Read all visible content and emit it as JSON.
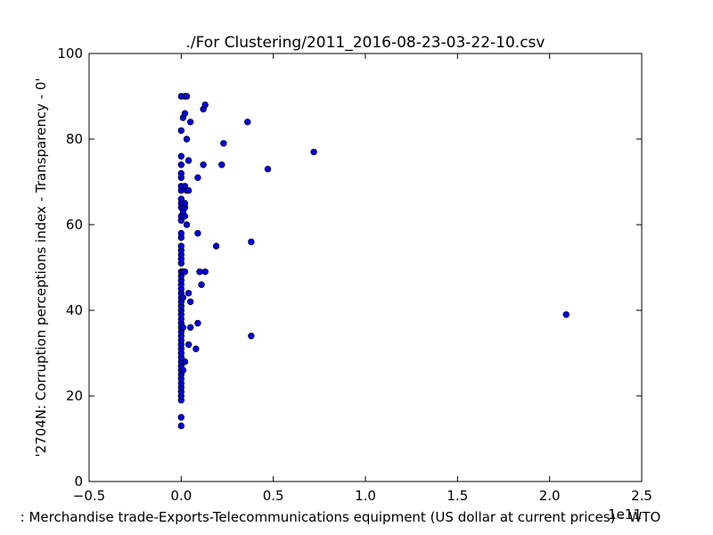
{
  "chart_data": {
    "type": "scatter",
    "title": "./For Clustering/2011_2016-08-23-03-22-10.csv",
    "xlabel": ": Merchandise trade-Exports-Telecommunications equipment (US dollar at current prices) - WTO",
    "ylabel": "'2704N: Corruption perceptions index - Transparency - 0'",
    "x_offset_label": "1e11",
    "xlim": [
      -0.5,
      2.5
    ],
    "ylim": [
      0,
      100
    ],
    "xticks": [
      -0.5,
      0.0,
      0.5,
      1.0,
      1.5,
      2.0,
      2.5
    ],
    "xtick_labels": [
      "−0.5",
      "0.0",
      "0.5",
      "1.0",
      "1.5",
      "2.0",
      "2.5"
    ],
    "yticks": [
      0,
      20,
      40,
      60,
      80,
      100
    ],
    "ytick_labels": [
      "0",
      "20",
      "40",
      "60",
      "80",
      "100"
    ],
    "grid": false,
    "marker_color": "#0000ff",
    "marker_edge": "#000000",
    "points": [
      [
        0.0,
        13
      ],
      [
        0.0,
        15
      ],
      [
        0.0,
        19
      ],
      [
        0.0,
        20
      ],
      [
        0.0,
        21
      ],
      [
        0.0,
        22
      ],
      [
        0.0,
        23
      ],
      [
        0.0,
        24
      ],
      [
        0.0,
        25
      ],
      [
        0.0,
        26
      ],
      [
        0.0,
        27
      ],
      [
        0.0,
        28
      ],
      [
        0.0,
        29
      ],
      [
        0.0,
        30
      ],
      [
        0.0,
        31
      ],
      [
        0.0,
        32
      ],
      [
        0.0,
        33
      ],
      [
        0.0,
        34
      ],
      [
        0.0,
        35
      ],
      [
        0.0,
        36
      ],
      [
        0.0,
        37
      ],
      [
        0.0,
        38
      ],
      [
        0.0,
        39
      ],
      [
        0.0,
        40
      ],
      [
        0.0,
        41
      ],
      [
        0.0,
        42
      ],
      [
        0.0,
        43
      ],
      [
        0.0,
        44
      ],
      [
        0.0,
        45
      ],
      [
        0.0,
        46
      ],
      [
        0.0,
        47
      ],
      [
        0.0,
        48
      ],
      [
        0.0,
        49
      ],
      [
        0.0,
        51
      ],
      [
        0.0,
        52
      ],
      [
        0.0,
        53
      ],
      [
        0.0,
        54
      ],
      [
        0.0,
        55
      ],
      [
        0.0,
        57
      ],
      [
        0.0,
        58
      ],
      [
        0.0,
        61
      ],
      [
        0.0,
        62
      ],
      [
        0.0,
        64
      ],
      [
        0.0,
        65
      ],
      [
        0.0,
        66
      ],
      [
        0.0,
        68
      ],
      [
        0.0,
        69
      ],
      [
        0.0,
        71
      ],
      [
        0.0,
        72
      ],
      [
        0.0,
        74
      ],
      [
        0.0,
        76
      ],
      [
        0.0,
        82
      ],
      [
        0.0,
        90
      ],
      [
        0.01,
        26
      ],
      [
        0.01,
        36
      ],
      [
        0.01,
        43
      ],
      [
        0.01,
        49
      ],
      [
        0.01,
        63
      ],
      [
        0.01,
        85
      ],
      [
        0.02,
        28
      ],
      [
        0.02,
        49
      ],
      [
        0.02,
        62
      ],
      [
        0.02,
        64
      ],
      [
        0.02,
        65
      ],
      [
        0.02,
        69
      ],
      [
        0.02,
        86
      ],
      [
        0.02,
        90
      ],
      [
        0.03,
        60
      ],
      [
        0.03,
        68
      ],
      [
        0.03,
        80
      ],
      [
        0.03,
        90
      ],
      [
        0.04,
        32
      ],
      [
        0.04,
        44
      ],
      [
        0.04,
        68
      ],
      [
        0.04,
        75
      ],
      [
        0.05,
        36
      ],
      [
        0.05,
        42
      ],
      [
        0.05,
        84
      ],
      [
        0.08,
        31
      ],
      [
        0.09,
        37
      ],
      [
        0.09,
        58
      ],
      [
        0.09,
        71
      ],
      [
        0.1,
        49
      ],
      [
        0.11,
        46
      ],
      [
        0.12,
        74
      ],
      [
        0.12,
        87
      ],
      [
        0.13,
        49
      ],
      [
        0.13,
        88
      ],
      [
        0.19,
        55
      ],
      [
        0.22,
        74
      ],
      [
        0.23,
        79
      ],
      [
        0.36,
        84
      ],
      [
        0.38,
        34
      ],
      [
        0.38,
        56
      ],
      [
        0.47,
        73
      ],
      [
        0.72,
        77
      ],
      [
        2.09,
        39
      ]
    ]
  }
}
